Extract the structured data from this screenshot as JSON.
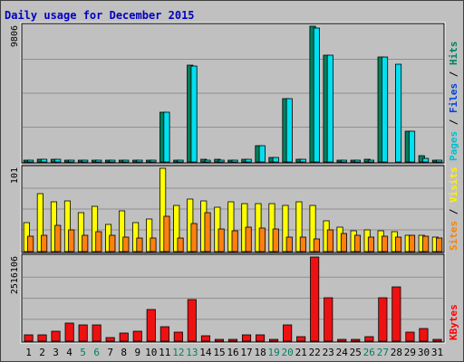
{
  "chart_data": {
    "type": "bar",
    "title": "Daily usage for December 2015",
    "categories": [
      "1",
      "2",
      "3",
      "4",
      "5",
      "6",
      "7",
      "8",
      "9",
      "10",
      "11",
      "12",
      "13",
      "14",
      "15",
      "16",
      "17",
      "18",
      "19",
      "20",
      "21",
      "22",
      "23",
      "24",
      "25",
      "26",
      "27",
      "28",
      "29",
      "30",
      "31"
    ],
    "weekend_days": [
      "5",
      "6",
      "12",
      "13",
      "19",
      "20",
      "26",
      "27"
    ],
    "panels": [
      {
        "id": "hits-files-pages",
        "max_label": "9806",
        "ylim": [
          0,
          9806
        ],
        "legend": [
          {
            "label": "Pages",
            "color": "#00C0D0"
          },
          {
            "label": "Files",
            "color": "#0040E0"
          },
          {
            "label": "Hits",
            "color": "#008060"
          }
        ],
        "series": [
          {
            "name": "Hits",
            "color": "#00805C",
            "values": [
              120,
              180,
              200,
              120,
              130,
              120,
              120,
              130,
              120,
              140,
              3600,
              140,
              7000,
              170,
              170,
              160,
              190,
              1200,
              350,
              4600,
              200,
              9806,
              7700,
              140,
              120,
              170,
              7600,
              0,
              2200,
              450,
              120
            ]
          },
          {
            "name": "Files",
            "color": "#00E0F0",
            "values": [
              110,
              170,
              190,
              110,
              120,
              110,
              110,
              120,
              110,
              130,
              3600,
              130,
              6900,
              160,
              160,
              150,
              180,
              1150,
              340,
              4600,
              190,
              9700,
              7700,
              130,
              110,
              160,
              7600,
              7050,
              2200,
              260,
              110
            ]
          }
        ]
      },
      {
        "id": "visits-sites",
        "max_label": "101",
        "ylim": [
          0,
          101
        ],
        "legend": [
          {
            "label": "Sites",
            "color": "#FF8000"
          },
          {
            "label": "Visits",
            "color": "#FFF000"
          }
        ],
        "series": [
          {
            "name": "Visits",
            "color": "#FFFF00",
            "values": [
              35,
              70,
              60,
              62,
              47,
              55,
              33,
              49,
              35,
              40,
              101,
              56,
              64,
              62,
              54,
              60,
              58,
              58,
              58,
              56,
              60,
              56,
              37,
              30,
              25,
              26,
              25,
              24,
              20,
              20,
              18
            ]
          },
          {
            "name": "Sites",
            "color": "#FF8010",
            "values": [
              19,
              20,
              32,
              26,
              20,
              24,
              20,
              18,
              17,
              16,
              43,
              16,
              34,
              47,
              27,
              25,
              30,
              28,
              27,
              18,
              18,
              15,
              26,
              22,
              20,
              18,
              19,
              18,
              20,
              19,
              17
            ]
          }
        ]
      },
      {
        "id": "kbytes",
        "max_label": "2516106",
        "ylim": [
          0,
          2516106
        ],
        "legend": [
          {
            "label": "KBytes",
            "color": "#FF0000"
          }
        ],
        "series": [
          {
            "name": "KBytes",
            "color": "#EE1111",
            "values": [
              200000,
              200000,
              300000,
              540000,
              500000,
              500000,
              120000,
              230000,
              310000,
              960000,
              430000,
              270000,
              1250000,
              150000,
              50000,
              50000,
              180000,
              200000,
              60000,
              500000,
              140000,
              2516106,
              1300000,
              50000,
              50000,
              140000,
              1300000,
              1610000,
              280000,
              370000,
              60000
            ]
          }
        ]
      }
    ],
    "grid": true,
    "colors": {
      "background": "#C0C0C0",
      "frame": "#FFFFFF",
      "title": "#0000C0",
      "axis_text": "#000000",
      "weekend_text": "#008060",
      "gridline": "#909090"
    }
  }
}
